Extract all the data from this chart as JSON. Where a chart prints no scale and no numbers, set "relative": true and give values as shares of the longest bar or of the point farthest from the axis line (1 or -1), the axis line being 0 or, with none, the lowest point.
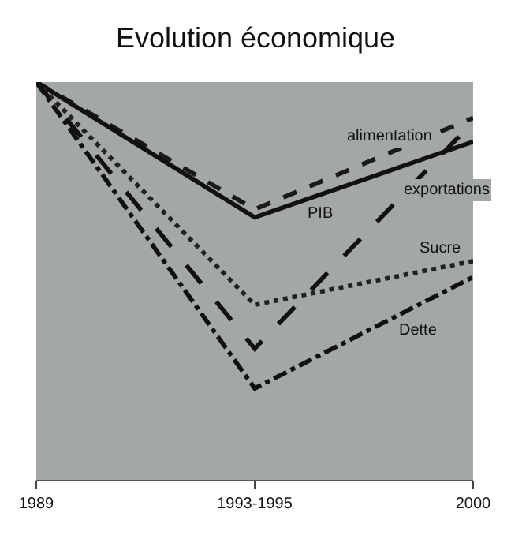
{
  "chart_data": {
    "type": "line",
    "title": "Evolution économique",
    "relative": true,
    "categories": [
      "1989",
      "1993-1995",
      "2000"
    ],
    "series": [
      {
        "name": "alimentation",
        "color": "#1a1a1a",
        "line_style": "dashed",
        "values": [
          1.0,
          0.68,
          0.91
        ]
      },
      {
        "name": "PIB",
        "color": "#111111",
        "line_style": "solid",
        "values": [
          1.0,
          0.66,
          0.85
        ]
      },
      {
        "name": "exportations",
        "color": "#111111",
        "line_style": "longdash",
        "values": [
          1.0,
          0.33,
          0.9
        ]
      },
      {
        "name": "Sucre",
        "color": "#222222",
        "line_style": "dotted",
        "values": [
          1.0,
          0.44,
          0.55
        ]
      },
      {
        "name": "Dette",
        "color": "#111111",
        "line_style": "dashdot",
        "values": [
          1.0,
          0.23,
          0.51
        ]
      }
    ],
    "grid": false,
    "legend": false,
    "marker": "none"
  }
}
